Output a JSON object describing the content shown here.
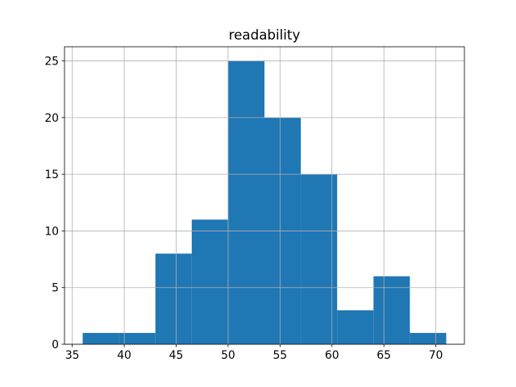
{
  "chart_data": {
    "type": "histogram",
    "title": "readability",
    "bins": [
      36,
      39.5,
      43,
      46.5,
      50,
      53.5,
      57,
      60.5,
      64,
      67.5,
      71
    ],
    "values": [
      1,
      1,
      8,
      11,
      25,
      20,
      15,
      3,
      6,
      1
    ],
    "color": "#1f77b4",
    "xlim": [
      34.25,
      72.75
    ],
    "xticks": [
      35,
      40,
      45,
      50,
      55,
      60,
      65,
      70
    ],
    "ylim": [
      0,
      26.25
    ],
    "yticks": [
      0,
      5,
      10,
      15,
      20,
      25
    ],
    "grid": true
  }
}
